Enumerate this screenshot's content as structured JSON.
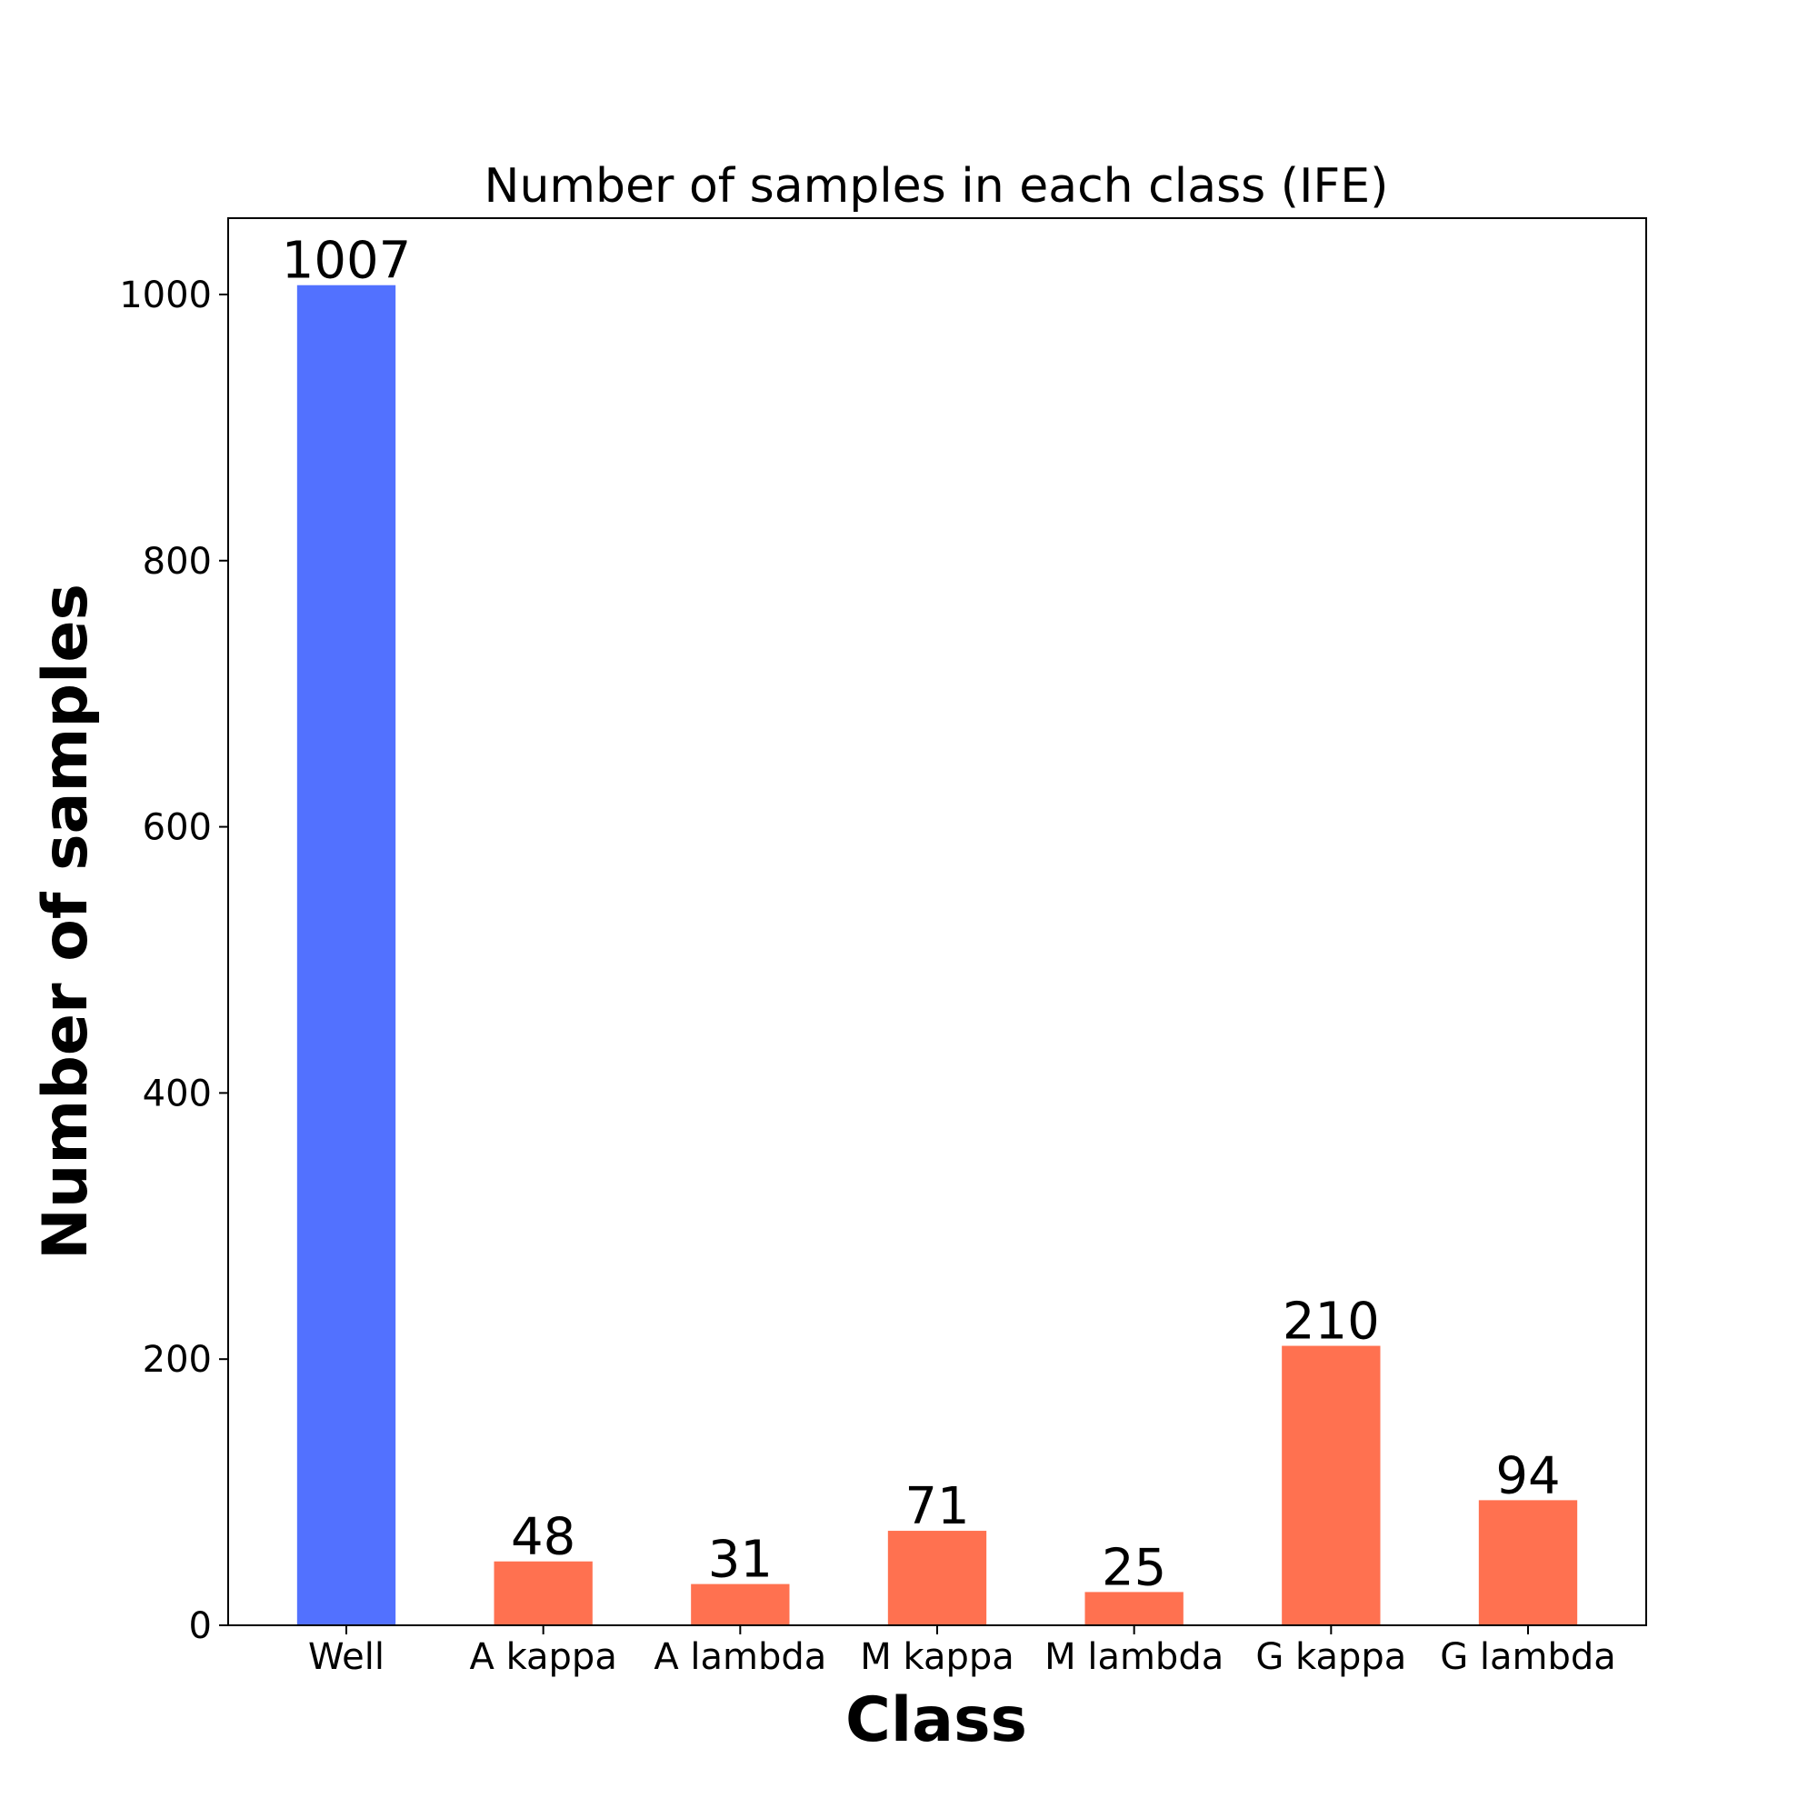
{
  "chart_data": {
    "type": "bar",
    "title": "Number of samples in each class (IFE)",
    "xlabel": "Class",
    "ylabel": "Number of samples",
    "categories": [
      "Well",
      "A kappa",
      "A lambda",
      "M kappa",
      "M lambda",
      "G kappa",
      "G lambda"
    ],
    "values": [
      1007,
      48,
      31,
      71,
      25,
      210,
      94
    ],
    "data_labels": [
      "1007",
      "48",
      "31",
      "71",
      "25",
      "210",
      "94"
    ],
    "bar_colors": [
      "#5271ff",
      "#ff7150",
      "#ff7150",
      "#ff7150",
      "#ff7150",
      "#ff7150",
      "#ff7150"
    ],
    "ylim": [
      0,
      1057.35
    ],
    "yticks": [
      0,
      200,
      400,
      600,
      800,
      1000
    ],
    "ytick_labels": [
      "0",
      "200",
      "400",
      "600",
      "800",
      "1000"
    ],
    "grid": false,
    "legend": "none"
  }
}
